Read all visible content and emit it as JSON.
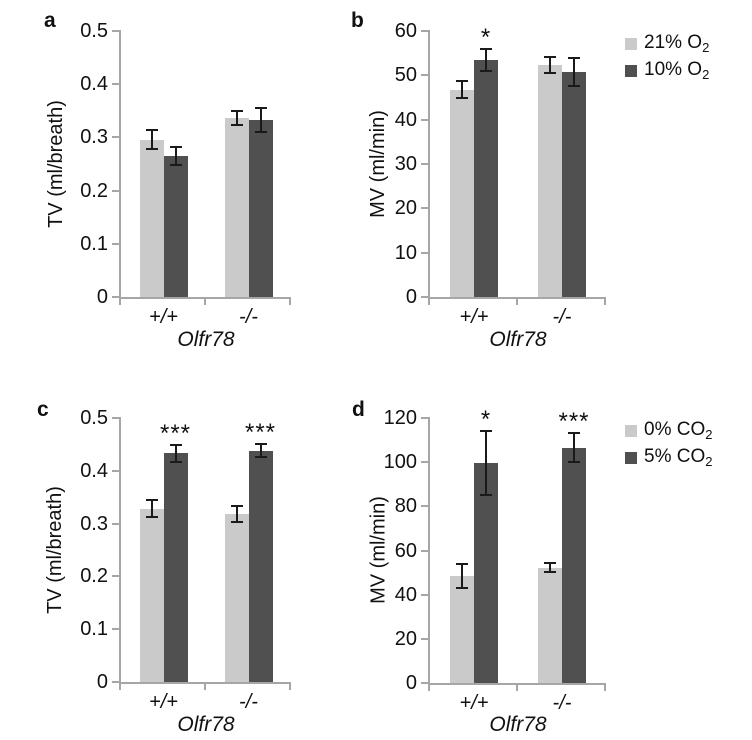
{
  "figure": {
    "background": "#ffffff"
  },
  "colors": {
    "light_series": "#cacaca",
    "dark_series": "#505050",
    "axis": "#a6a6a6",
    "error_bar": "#1a1a1a",
    "text": "#111111"
  },
  "chart_data": [
    {
      "panel": "a",
      "type": "bar",
      "title": "",
      "ylabel": "TV (ml/breath)",
      "xlabel": "Olfr78",
      "ylim": [
        0,
        0.5
      ],
      "yticks": [
        "0",
        "0.1",
        "0.2",
        "0.3",
        "0.4",
        "0.5"
      ],
      "grid": false,
      "categories": [
        "+/+",
        "-/-"
      ],
      "series": [
        {
          "name": "21% O2",
          "values": [
            0.296,
            0.337
          ],
          "errors": [
            0.017,
            0.013
          ],
          "sig": [
            "",
            ""
          ]
        },
        {
          "name": "10% O2",
          "values": [
            0.265,
            0.333
          ],
          "errors": [
            0.017,
            0.022
          ],
          "sig": [
            "",
            ""
          ]
        }
      ],
      "legend": null
    },
    {
      "panel": "b",
      "type": "bar",
      "title": "",
      "ylabel": "MV (ml/min)",
      "xlabel": "Olfr78",
      "ylim": [
        0,
        60
      ],
      "yticks": [
        "0",
        "10",
        "20",
        "30",
        "40",
        "50",
        "60"
      ],
      "grid": false,
      "categories": [
        "+/+",
        "-/-"
      ],
      "series": [
        {
          "name": "21% O2",
          "values": [
            46.8,
            52.3
          ],
          "errors": [
            2.0,
            1.8
          ],
          "sig": [
            "",
            ""
          ]
        },
        {
          "name": "10% O2",
          "values": [
            53.5,
            50.8
          ],
          "errors": [
            2.5,
            3.2
          ],
          "sig": [
            "*",
            ""
          ]
        }
      ],
      "legend": [
        {
          "text": "21% O",
          "sub": "2"
        },
        {
          "text": "10% O",
          "sub": "2"
        }
      ],
      "legend_position": "right"
    },
    {
      "panel": "c",
      "type": "bar",
      "title": "",
      "ylabel": "TV (ml/breath)",
      "xlabel": "Olfr78",
      "ylim": [
        0,
        0.5
      ],
      "yticks": [
        "0",
        "0.1",
        "0.2",
        "0.3",
        "0.4",
        "0.5"
      ],
      "grid": false,
      "categories": [
        "+/+",
        "-/-"
      ],
      "series": [
        {
          "name": "0% CO2",
          "values": [
            0.328,
            0.318
          ],
          "errors": [
            0.016,
            0.015
          ],
          "sig": [
            "",
            ""
          ]
        },
        {
          "name": "5% CO2",
          "values": [
            0.433,
            0.438
          ],
          "errors": [
            0.016,
            0.012
          ],
          "sig": [
            "***",
            "***"
          ]
        }
      ],
      "legend": null
    },
    {
      "panel": "d",
      "type": "bar",
      "title": "",
      "ylabel": "MV (ml/min)",
      "xlabel": "Olfr78",
      "ylim": [
        0,
        120
      ],
      "yticks": [
        "0",
        "20",
        "40",
        "60",
        "80",
        "100",
        "120"
      ],
      "grid": false,
      "categories": [
        "+/+",
        "-/-"
      ],
      "series": [
        {
          "name": "0% CO2",
          "values": [
            48.5,
            52.2
          ],
          "errors": [
            5.5,
            2.0
          ],
          "sig": [
            "",
            ""
          ]
        },
        {
          "name": "5% CO2",
          "values": [
            99.5,
            106.5
          ],
          "errors": [
            14.5,
            6.5
          ],
          "sig": [
            "*",
            "***"
          ]
        }
      ],
      "legend": [
        {
          "text": "0% CO",
          "sub": "2"
        },
        {
          "text": "5% CO",
          "sub": "2"
        }
      ],
      "legend_position": "right"
    }
  ]
}
